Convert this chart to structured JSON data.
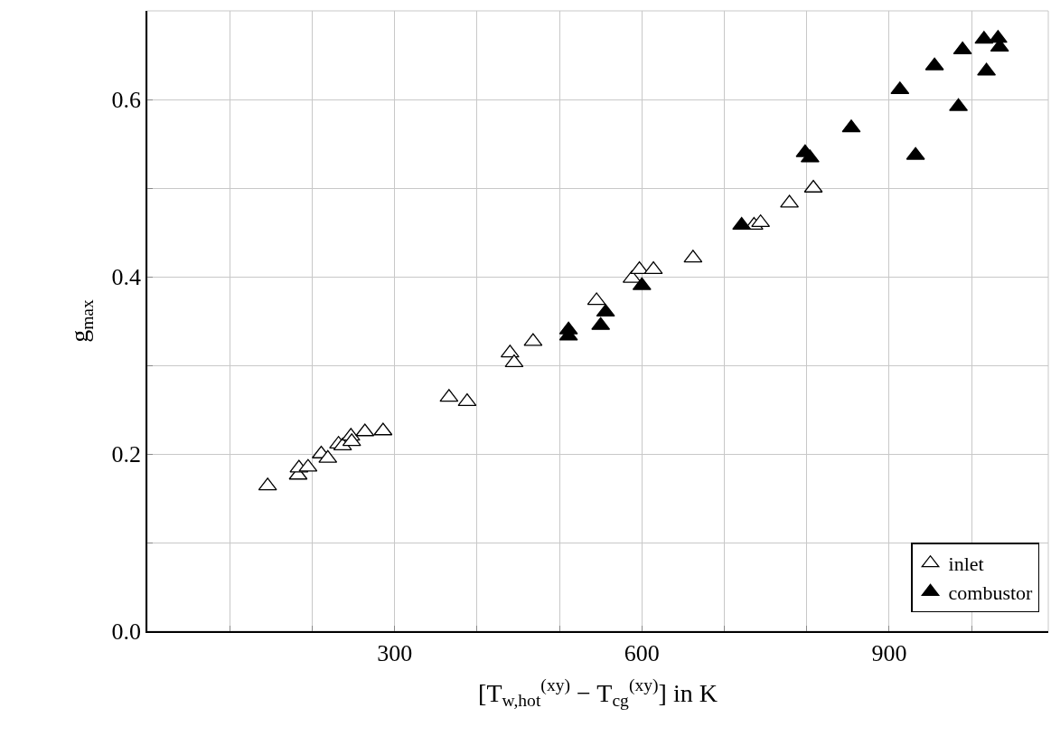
{
  "chart_data": {
    "type": "scatter",
    "xlabel": "[T$_{w,hot}$$^{(xy)}$ − T$_{cg}$$^{(xy)}$] in K",
    "ylabel": "g$_{max}$",
    "xlim": [
      0,
      1093
    ],
    "ylim": [
      0,
      0.7
    ],
    "xticks": [
      {
        "value": 100,
        "label": null
      },
      {
        "value": 200,
        "label": null
      },
      300,
      {
        "value": 400,
        "label": null
      },
      {
        "value": 500,
        "label": null
      },
      600,
      {
        "value": 700,
        "label": null
      },
      {
        "value": 800,
        "label": null
      },
      900,
      {
        "value": 1000,
        "label": null
      }
    ],
    "yticks": [
      {
        "value": 0,
        "label": "0.0"
      },
      {
        "value": 0.1,
        "label": null
      },
      0.2,
      {
        "value": 0.3,
        "label": null
      },
      0.4,
      {
        "value": 0.5,
        "label": null
      },
      0.6
    ],
    "grid": true,
    "legend": "bottom right",
    "marker": "triangle",
    "series": [
      {
        "name": "inlet",
        "color": "#ffffff",
        "x": [
          146,
          183,
          184,
          195,
          211,
          219,
          232,
          237,
          247,
          248,
          264,
          286,
          366,
          388,
          440,
          445,
          468,
          545,
          588,
          597,
          614,
          662,
          736,
          744,
          779,
          808
        ],
        "values": [
          0.164,
          0.176,
          0.184,
          0.185,
          0.2,
          0.195,
          0.211,
          0.209,
          0.22,
          0.214,
          0.225,
          0.226,
          0.264,
          0.259,
          0.314,
          0.303,
          0.327,
          0.373,
          0.398,
          0.408,
          0.408,
          0.421,
          0.458,
          0.461,
          0.483,
          0.5
        ]
      },
      {
        "name": "combustor",
        "color": "#000000",
        "x": [
          511,
          511,
          550,
          556,
          600,
          721,
          798,
          804,
          854,
          913,
          932,
          955,
          984,
          989,
          1015,
          1018,
          1032,
          1034
        ],
        "values": [
          0.333,
          0.34,
          0.345,
          0.36,
          0.39,
          0.458,
          0.54,
          0.534,
          0.568,
          0.611,
          0.537,
          0.638,
          0.592,
          0.656,
          0.668,
          0.632,
          0.669,
          0.659
        ]
      }
    ]
  }
}
